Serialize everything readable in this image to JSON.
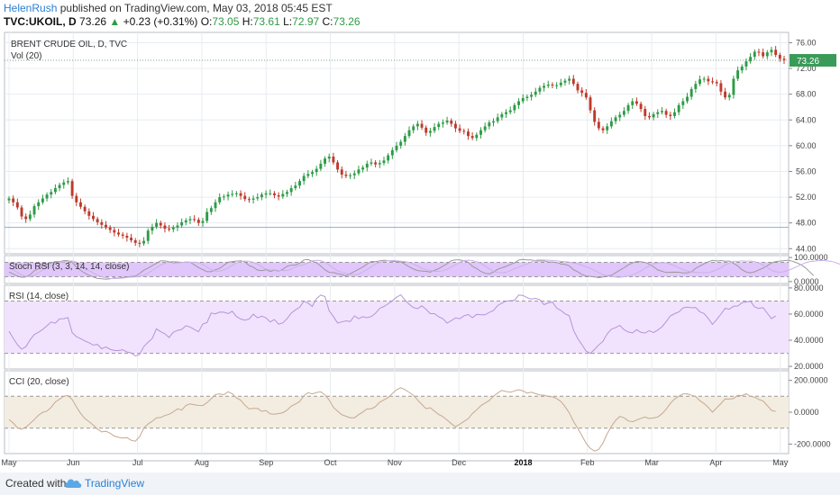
{
  "header": {
    "author": "HelenRush",
    "published": "published on TradingView.com, May 03, 2018 05:45 EST",
    "symbol": "TVC:UKOIL, D",
    "last": "73.26",
    "change": "+0.23 (+0.31%)",
    "o_label": "O:",
    "o": "73.05",
    "h_label": "H:",
    "h": "73.61",
    "l_label": "L:",
    "l": "72.97",
    "c_label": "C:",
    "c": "73.26"
  },
  "footer": {
    "created_with": "Created with",
    "brand": "TradingView"
  },
  "colors": {
    "up": "#2e9b46",
    "down": "#c0392b",
    "grid": "#e8ecf0",
    "stoch_band": "#e0c6fb",
    "rsi_band": "#f1e3fd",
    "cci_band": "#f3ede1",
    "price_tag": "#3a9b59"
  },
  "chart_data": [
    {
      "type": "candlestick",
      "title": "BRENT CRUDE OIL, D, TVC",
      "volume_label": "Vol (20)",
      "y_ticks": [
        "76.00",
        "72.00",
        "68.00",
        "64.00",
        "60.00",
        "56.00",
        "52.00",
        "48.00",
        "44.00"
      ],
      "ylim": [
        43.2,
        77.6
      ],
      "last_price": "73.26",
      "horizontal_line": 47.3,
      "x_labels": [
        "May",
        "Jun",
        "Jul",
        "Aug",
        "Sep",
        "Oct",
        "Nov",
        "Dec",
        "2018",
        "Feb",
        "Mar",
        "Apr",
        "May"
      ],
      "closes": [
        51.8,
        51.2,
        50.4,
        49.0,
        48.6,
        49.3,
        50.6,
        51.2,
        51.8,
        52.4,
        52.8,
        53.4,
        53.9,
        54.3,
        54.5,
        52.2,
        51.2,
        50.5,
        49.8,
        49.1,
        48.6,
        48.1,
        47.7,
        47.3,
        46.9,
        46.5,
        46.2,
        46.0,
        45.7,
        45.3,
        44.9,
        44.8,
        45.2,
        46.8,
        47.4,
        48.0,
        47.6,
        47.1,
        47.0,
        47.3,
        47.6,
        48.1,
        48.4,
        48.6,
        48.5,
        48.0,
        48.3,
        49.7,
        50.3,
        51.2,
        52.0,
        52.1,
        52.4,
        52.5,
        52.6,
        52.2,
        51.7,
        51.6,
        51.8,
        52.0,
        52.4,
        52.6,
        52.6,
        52.3,
        52.1,
        52.5,
        52.8,
        53.4,
        53.8,
        54.5,
        55.3,
        55.6,
        55.9,
        56.4,
        57.2,
        58.0,
        58.3,
        57.4,
        56.3,
        55.5,
        55.3,
        55.4,
        55.7,
        56.3,
        56.6,
        57.2,
        57.4,
        57.1,
        57.3,
        57.7,
        58.5,
        59.3,
        60.0,
        60.6,
        61.5,
        62.4,
        63.0,
        63.4,
        62.8,
        62.0,
        62.3,
        62.9,
        63.4,
        63.6,
        63.9,
        63.4,
        62.7,
        62.3,
        62.2,
        61.5,
        61.2,
        61.7,
        62.4,
        63.0,
        63.6,
        63.8,
        64.4,
        64.9,
        65.2,
        65.5,
        66.3,
        66.9,
        67.4,
        67.6,
        67.9,
        68.4,
        69.0,
        69.3,
        69.5,
        69.4,
        69.4,
        69.8,
        70.1,
        70.4,
        69.6,
        68.6,
        68.2,
        67.5,
        65.5,
        63.7,
        62.7,
        62.4,
        63.0,
        63.8,
        64.4,
        64.8,
        65.4,
        66.3,
        66.9,
        66.5,
        65.7,
        64.6,
        64.4,
        64.9,
        65.2,
        65.4,
        64.8,
        64.6,
        65.2,
        66.3,
        66.9,
        67.6,
        68.8,
        69.6,
        70.3,
        70.4,
        70.0,
        69.9,
        69.7,
        68.4,
        67.5,
        67.9,
        70.4,
        71.7,
        72.3,
        73.1,
        73.8,
        74.6,
        74.5,
        73.9,
        74.5,
        74.9,
        74.1,
        73.5,
        73.3
      ],
      "stoch_rsi": {
        "label": "Stoch RSI (3, 3, 14, 14, close)",
        "y_ticks": [
          "100.0000",
          "0.0000"
        ],
        "levels": [
          80,
          20
        ],
        "k": [
          39.9,
          31.7,
          23.1,
          17.7,
          19.1,
          28.3,
          44.6,
          53.2,
          66.8,
          70.9,
          76.9,
          83.3,
          82.7,
          87.3,
          87.1,
          80.2,
          60.6,
          46.5,
          35.2,
          26.5,
          18.8,
          13.0,
          11.6,
          10.0,
          11.5,
          15.7,
          13.9,
          17.2,
          18.9,
          21.0,
          22.7,
          33.5,
          47.5,
          56.0,
          66.0,
          76.0,
          86.4,
          85.8,
          82.9,
          78.0,
          78.9,
          79.6,
          81.6,
          81.1,
          69.6,
          58.2,
          49.9,
          41.0,
          41.0,
          48.7,
          55.3,
          67.6,
          80.2,
          83.4,
          85.2,
          86.6,
          81.8,
          66.3,
          59.6,
          48.0,
          45.5,
          49.6,
          42.0,
          46.9,
          43.5,
          50.9,
          63.9,
          68.0,
          68.6,
          76.6,
          89.9,
          91.4,
          84.1,
          78.6,
          64.7,
          49.1,
          38.3,
          37.6,
          32.9,
          28.9,
          23.7,
          32.8,
          41.8,
          51.2,
          60.3,
          73.1,
          83.6,
          83.1,
          86.0,
          89.1,
          85.9,
          84.6,
          82.4,
          81.9,
          72.0,
          61.2,
          52.3,
          46.0,
          44.1,
          42.5,
          39.4,
          46.7,
          53.6,
          63.9,
          74.4,
          87.2,
          90.3,
          90.0,
          86.0,
          80.8,
          63.2,
          54.6,
          42.3,
          34.3,
          31.9,
          39.6,
          51.3,
          57.3,
          63.0,
          70.8,
          78.1,
          89.2,
          92.2,
          89.7,
          90.5,
          85.4,
          85.5,
          85.9,
          81.9,
          81.6,
          79.1,
          73.4,
          71.4,
          65.3,
          49.3,
          41.1,
          29.0,
          23.2,
          21.5,
          19.5,
          16.2,
          19.4,
          24.2,
          25.7,
          36.4,
          47.3,
          57.6,
          69.6,
          77.5,
          83.6,
          82.0,
          79.5,
          71.9,
          61.6,
          48.4,
          42.8,
          37.6,
          38.6,
          39.2,
          38.6,
          36.2,
          36.2,
          40.3,
          55.0,
          64.3,
          73.4,
          82.0,
          88.1,
          85.6,
          87.5,
          84.8,
          85.6,
          76.0,
          64.9,
          49.3,
          40.0,
          36.4,
          40.6,
          48.5,
          55.8,
          66.0,
          77.8,
          83.2,
          85.1,
          87.0,
          88.9,
          84.4,
          78.1,
          69.8,
          58.2,
          41.7,
          25.4
        ],
        "d": [
          55.8,
          48.1,
          38.0,
          27.2,
          21.1,
          20.4,
          26.2,
          37.4,
          48.3,
          59.7,
          66.1,
          72.6,
          78.5,
          81.8,
          84.7,
          85.8,
          80.8,
          71.6,
          58.9,
          45.7,
          34.5,
          26.2,
          19.8,
          15.9,
          12.9,
          12.5,
          12.8,
          14.3,
          16.9,
          18.4,
          19.2,
          21.4,
          26.0,
          35.4,
          45.9,
          57.9,
          68.2,
          76.1,
          81.9,
          84.1,
          82.3,
          80.4,
          79.7,
          80.1,
          80.6,
          78.9,
          71.4,
          59.0,
          49.6,
          44.0,
          43.6,
          48.4,
          56.6,
          67.6,
          77.1,
          83.1,
          85.0,
          84.8,
          79.7,
          72.8,
          61.4,
          52.3,
          47.6,
          48.4,
          46.0,
          46.1,
          45.9,
          52.8,
          60.1,
          66.8,
          70.4,
          78.6,
          86.2,
          88.4,
          86.9,
          79.9,
          68.4,
          55.6,
          44.6,
          38.2,
          34.2,
          28.9,
          28.0,
          31.2,
          40.0,
          50.2,
          61.4,
          73.4,
          79.9,
          84.1,
          86.1,
          87.7,
          86.7,
          84.5,
          83.2,
          79.6,
          73.1,
          64.2,
          55.7,
          49.4,
          45.8,
          42.6,
          42.5,
          45.6,
          51.9,
          60.5,
          70.1,
          80.1,
          86.9,
          88.8,
          87.6,
          82.6,
          76.3,
          64.4,
          53.6,
          42.5,
          37.5,
          36.7,
          38.7,
          45.4,
          53.9,
          60.0,
          66.5,
          73.5,
          82.1,
          88.1,
          90.4,
          89.6,
          88.9,
          87.3,
          85.8,
          84.0,
          82.6,
          80.7,
          77.4,
          73.8,
          68.5,
          60.9,
          54.7,
          45.8,
          37.6,
          29.2,
          23.4,
          21.1,
          18.5,
          17.9,
          19.9,
          22.7,
          28.2,
          35.5,
          44.5,
          55.5,
          64.8,
          74.0,
          77.7,
          78.7,
          77.8,
          72.7,
          65.2,
          57.0,
          50.0,
          44.1,
          40.3,
          38.5,
          37.4,
          37.0,
          38.1,
          42.0,
          49.4,
          58.0,
          69.5,
          77.3,
          84.0,
          84.2,
          85.8,
          84.7,
          85.4,
          82.8,
          77.3,
          68.3,
          58.6,
          46.5,
          40.7,
          38.8,
          41.1,
          47.1,
          53.6,
          61.9,
          69.9,
          77.8,
          82.4,
          84.8,
          87.0,
          87.7,
          86.7,
          84.4,
          80.6,
          74.1,
          65.7,
          53.7,
          41.5
        ],
        "ylim": [
          -8,
          108
        ]
      },
      "rsi": {
        "label": "RSI (14, close)",
        "y_ticks": [
          "80.0000",
          "60.0000",
          "40.0000",
          "20.0000"
        ],
        "levels": [
          70,
          30
        ],
        "values": [
          46.9,
          41.5,
          36.6,
          33.2,
          35.1,
          40.3,
          44.3,
          46.1,
          48.3,
          51.0,
          53.9,
          53.0,
          56.3,
          56.5,
          57.3,
          45.8,
          42.7,
          41.2,
          39.5,
          38.1,
          36.3,
          36.8,
          33.5,
          34.9,
          33.1,
          32.2,
          32.1,
          32.7,
          31.0,
          30.3,
          28.0,
          29.1,
          35.2,
          38.4,
          41.3,
          48.7,
          46.5,
          44.9,
          42.1,
          46.1,
          47.5,
          48.3,
          51.1,
          50.1,
          48.2,
          46.5,
          52.4,
          53.6,
          60.8,
          60.2,
          61.5,
          61.4,
          60.3,
          62.1,
          58.1,
          56.2,
          55.4,
          56.2,
          59.9,
          57.1,
          58.4,
          57.1,
          54.0,
          55.8,
          52.3,
          53.3,
          56.5,
          60.8,
          63.2,
          65.2,
          69.9,
          68.4,
          65.8,
          71.9,
          74.6,
          73.4,
          62.5,
          58.1,
          53.2,
          54.0,
          54.8,
          54.3,
          58.6,
          56.5,
          58.0,
          57.2,
          58.2,
          60.6,
          64.4,
          65.8,
          67.9,
          70.1,
          72.9,
          74.7,
          70.8,
          67.5,
          65.0,
          64.1,
          66.3,
          63.7,
          60.3,
          60.3,
          57.9,
          56.4,
          53.1,
          55.0,
          57.0,
          56.5,
          58.7,
          59.7,
          57.2,
          59.8,
          59.4,
          59.4,
          61.2,
          62.7,
          66.5,
          68.4,
          69.9,
          70.2,
          70.6,
          74.5,
          74.3,
          72.5,
          71.4,
          72.0,
          71.0,
          67.2,
          68.5,
          69.2,
          64.6,
          62.8,
          60.2,
          58.7,
          47.7,
          41.3,
          36.6,
          31.7,
          29.9,
          33.1,
          36.4,
          39.2,
          44.9,
          48.4,
          49.7,
          51.3,
          48.1,
          46.3,
          45.5,
          48.1,
          46.0,
          45.5,
          47.3,
          45.8,
          47.8,
          50.3,
          54.2,
          58.6,
          60.3,
          61.6,
          64.7,
          65.3,
          64.8,
          65.1,
          61.8,
          60.4,
          56.6,
          52.1,
          55.8,
          60.0,
          64.4,
          63.7,
          66.0,
          66.2,
          68.7,
          69.3,
          69.8,
          65.4,
          64.3,
          64.9,
          60.7,
          56.5,
          58.5
        ],
        "ylim": [
          18,
          82
        ]
      },
      "cci": {
        "label": "CCI (20, close)",
        "y_ticks": [
          "200.0000",
          "0.0000",
          "-200.0000"
        ],
        "levels": [
          100,
          -100
        ],
        "values": [
          -46.0,
          -68.0,
          -97.2,
          -107.3,
          -93.0,
          -70.4,
          -46.8,
          -19.2,
          -0.3,
          7.0,
          29.5,
          64.2,
          81.4,
          101.4,
          104.4,
          79.7,
          33.1,
          -7.8,
          -39.0,
          -59.5,
          -81.5,
          -106.0,
          -123.9,
          -119.6,
          -131.8,
          -149.8,
          -157.5,
          -162.2,
          -159.3,
          -176.6,
          -182.0,
          -154.0,
          -99.2,
          -74.3,
          -56.9,
          -35.2,
          -33.3,
          -21.0,
          -13.0,
          2.9,
          20.8,
          13.6,
          42.5,
          52.1,
          46.4,
          42.2,
          41.9,
          59.7,
          83.9,
          110.4,
          115.1,
          109.8,
          128.3,
          116.0,
          89.9,
          75.4,
          44.0,
          20.4,
          24.5,
          24.0,
          5.9,
          10.6,
          -10.8,
          -12.4,
          -8.5,
          -3.3,
          12.9,
          38.0,
          51.2,
          67.2,
          103.5,
          122.4,
          114.5,
          123.5,
          127.6,
          108.9,
          76.6,
          30.3,
          6.4,
          -15.7,
          -25.6,
          -35.2,
          -35.2,
          -15.3,
          1.2,
          21.3,
          21.3,
          35.0,
          62.9,
          77.7,
          92.4,
          117.7,
          141.3,
          153.6,
          141.6,
          124.4,
          106.5,
          75.9,
          48.7,
          21.8,
          28.3,
          6.5,
          -13.3,
          -27.9,
          -50.0,
          -72.1,
          -90.8,
          -75.9,
          -57.5,
          -41.2,
          -8.7,
          13.9,
          40.5,
          57.8,
          72.8,
          100.4,
          120.3,
          137.0,
          130.2,
          124.9,
          133.8,
          141.1,
          133.3,
          120.0,
          125.2,
          116.3,
          108.1,
          106.8,
          99.1,
          96.6,
          85.9,
          67.5,
          35.1,
          -4.1,
          -57.6,
          -102.0,
          -147.6,
          -195.7,
          -227.7,
          -244.4,
          -233.9,
          -193.3,
          -135.0,
          -88.2,
          -51.2,
          -26.7,
          -35.0,
          -54.9,
          -59.8,
          -49.8,
          -38.4,
          -30.4,
          -39.3,
          -36.0,
          -29.7,
          -9.7,
          18.4,
          55.2,
          82.3,
          100.8,
          114.0,
          115.8,
          106.2,
          98.7,
          72.1,
          54.4,
          30.1,
          0.2,
          27.5,
          54.2,
          83.2,
          82.3,
          85.5,
          106.0,
          103.8,
          116.4,
          99.4,
          94.4,
          80.2,
          70.9,
          41.6,
          11.3,
          4.7
        ],
        "ylim": [
          -260,
          260
        ]
      }
    }
  ]
}
